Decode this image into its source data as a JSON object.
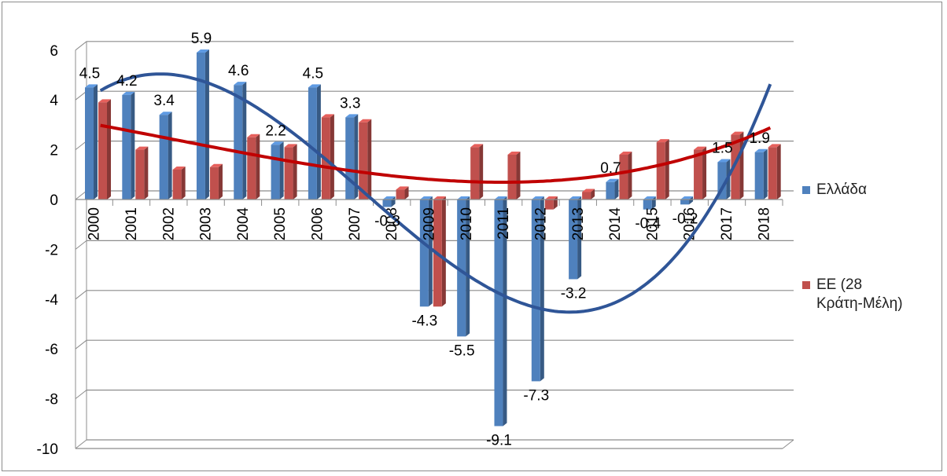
{
  "chart_data": {
    "type": "bar",
    "categories": [
      "2000",
      "2001",
      "2002",
      "2003",
      "2004",
      "2005",
      "2006",
      "2007",
      "2008",
      "2009",
      "2010",
      "2011",
      "2012",
      "2013",
      "2014",
      "2015",
      "2016",
      "2017",
      "2018"
    ],
    "series": [
      {
        "name": "Ελλάδα",
        "color": "#4F81BD",
        "values": [
          4.5,
          4.2,
          3.4,
          5.9,
          4.6,
          2.2,
          4.5,
          3.3,
          -0.3,
          -4.3,
          -5.5,
          -9.1,
          -7.3,
          -3.2,
          0.7,
          -0.4,
          -0.2,
          1.5,
          1.9
        ],
        "data_labels": [
          "4.5",
          "4.2",
          "3.4",
          "5.9",
          "4.6",
          "2.2",
          "4.5",
          "3.3",
          "-0.3",
          "-4.3",
          "-5.5",
          "-9.1",
          "-7.3",
          "-3.2",
          "0.7",
          "-0.4",
          "-0.2",
          "1.5",
          "1.9"
        ]
      },
      {
        "name": "ΕΕ (28 Κράτη-Μέλη)",
        "color": "#C0504D",
        "values": [
          3.9,
          2.0,
          1.2,
          1.3,
          2.5,
          2.1,
          3.3,
          3.1,
          0.4,
          -4.3,
          2.1,
          1.8,
          -0.4,
          0.3,
          1.8,
          2.3,
          2.0,
          2.6,
          2.1
        ]
      }
    ],
    "trendlines": [
      {
        "series": "Ελλάδα",
        "type": "polynomial",
        "color": "#2F5597"
      },
      {
        "series": "ΕΕ (28 Κράτη-Μέλη)",
        "type": "polynomial",
        "color": "#C00000"
      }
    ],
    "yticks": [
      "6",
      "4",
      "2",
      "0",
      "-2",
      "-4",
      "-6",
      "-8",
      "-10"
    ],
    "ylim": [
      -10,
      6
    ],
    "grid": true,
    "legend_position": "right",
    "title": "",
    "xlabel": "",
    "ylabel": ""
  },
  "legend": [
    {
      "label": "Ελλάδα",
      "color": "#4F81BD"
    },
    {
      "label": "ΕΕ (28 Κράτη-Μέλη)",
      "color": "#C0504D"
    }
  ]
}
